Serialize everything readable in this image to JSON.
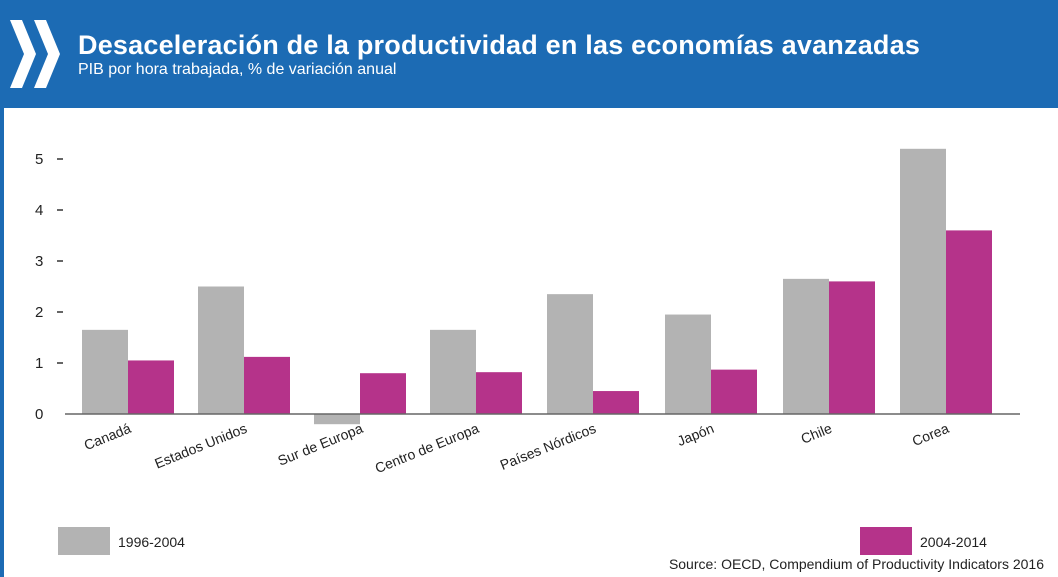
{
  "header": {
    "title": "Desaceleración de la productividad en las economías avanzadas",
    "subtitle": "PIB por hora trabajada, % de variación anual",
    "background_color": "#1c6bb4",
    "icon": "double-chevron-right-icon"
  },
  "chart_data": {
    "type": "bar",
    "title": "Desaceleración de la productividad en las economías avanzadas",
    "subtitle": "PIB por hora trabajada, % de variación anual",
    "categories": [
      "Canadá",
      "Estados Unidos",
      "Sur de Europa",
      "Centro de Europa",
      "Países Nórdicos",
      "Japón",
      "Chile",
      "Corea"
    ],
    "series": [
      {
        "name": "1996-2004",
        "color": "#b3b3b3",
        "values": [
          1.65,
          2.5,
          -0.2,
          1.65,
          2.35,
          1.95,
          2.65,
          5.2
        ]
      },
      {
        "name": "2004-2014",
        "color": "#b5338a",
        "values": [
          1.05,
          1.12,
          0.8,
          0.82,
          0.45,
          0.87,
          2.6,
          3.6
        ]
      }
    ],
    "yticks": [
      0,
      1,
      2,
      3,
      4,
      5
    ],
    "ylim": [
      -0.25,
      5.35
    ],
    "grid": false,
    "legend_position": "bottom",
    "source": "Source: OECD, Compendium of Productivity Indicators 2016"
  }
}
